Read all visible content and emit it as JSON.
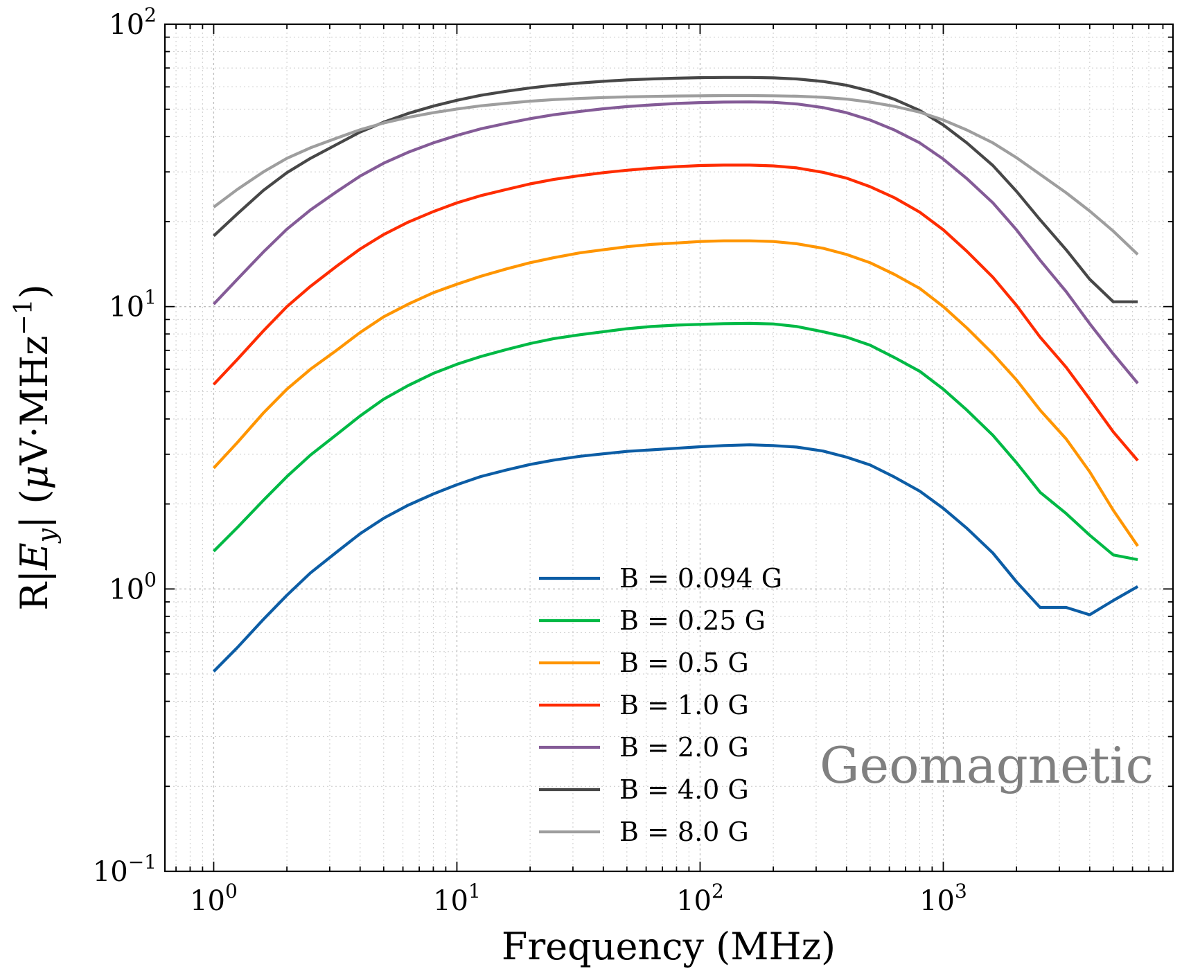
{
  "chart_data": {
    "type": "line",
    "x_scale": "log",
    "y_scale": "log",
    "xlabel": "Frequency (MHz)",
    "ylabel_parts": {
      "prefix": "R|",
      "var": "E",
      "sub": "y",
      "mid": "| (",
      "mu": "μ",
      "unit": "V·MHz",
      "exp": "−1",
      "suffix": ")"
    },
    "xlim": [
      0.63,
      8800
    ],
    "ylim": [
      0.1,
      100
    ],
    "x_ticks": [
      {
        "value": 1,
        "base": "10",
        "exp": "0"
      },
      {
        "value": 10,
        "base": "10",
        "exp": "1"
      },
      {
        "value": 100,
        "base": "10",
        "exp": "2"
      },
      {
        "value": 1000,
        "base": "10",
        "exp": "3"
      }
    ],
    "y_ticks": [
      {
        "value": 0.1,
        "base": "10",
        "exp": "−1"
      },
      {
        "value": 1,
        "base": "10",
        "exp": "0"
      },
      {
        "value": 10,
        "base": "10",
        "exp": "1"
      },
      {
        "value": 100,
        "base": "10",
        "exp": "2"
      }
    ],
    "grid": true,
    "legend_position": "lower-center",
    "annotation": "Geomagnetic",
    "x": [
      1,
      1.25,
      1.6,
      2,
      2.5,
      3.2,
      4,
      5,
      6.3,
      8,
      10,
      12.5,
      16,
      20,
      25,
      32,
      40,
      50,
      63,
      80,
      100,
      125,
      160,
      200,
      250,
      320,
      400,
      500,
      630,
      800,
      1000,
      1250,
      1600,
      2000,
      2500,
      3200,
      4000,
      5000,
      6300
    ],
    "series": [
      {
        "name": "B = 0.094 G",
        "color": "#0c5da5",
        "values": [
          0.51,
          0.62,
          0.78,
          0.95,
          1.14,
          1.35,
          1.57,
          1.78,
          1.98,
          2.17,
          2.34,
          2.5,
          2.64,
          2.76,
          2.86,
          2.95,
          3.01,
          3.07,
          3.11,
          3.15,
          3.19,
          3.22,
          3.24,
          3.22,
          3.18,
          3.08,
          2.93,
          2.75,
          2.49,
          2.22,
          1.93,
          1.64,
          1.34,
          1.06,
          0.86,
          0.86,
          0.81,
          0.91,
          1.02
        ]
      },
      {
        "name": "B = 0.25 G",
        "color": "#00b945",
        "values": [
          1.36,
          1.65,
          2.06,
          2.5,
          2.98,
          3.52,
          4.1,
          4.7,
          5.25,
          5.8,
          6.25,
          6.65,
          7.05,
          7.4,
          7.7,
          7.95,
          8.15,
          8.35,
          8.5,
          8.6,
          8.65,
          8.7,
          8.72,
          8.68,
          8.5,
          8.15,
          7.8,
          7.3,
          6.6,
          5.9,
          5.1,
          4.3,
          3.5,
          2.8,
          2.2,
          1.85,
          1.55,
          1.32,
          1.27
        ]
      },
      {
        "name": "B = 0.5 G",
        "color": "#ff9500",
        "values": [
          2.68,
          3.3,
          4.2,
          5.1,
          6.0,
          7.0,
          8.1,
          9.2,
          10.2,
          11.2,
          12.0,
          12.8,
          13.6,
          14.3,
          14.9,
          15.5,
          15.9,
          16.3,
          16.6,
          16.8,
          17.0,
          17.1,
          17.1,
          17.0,
          16.7,
          16.1,
          15.3,
          14.3,
          13.0,
          11.6,
          10.0,
          8.4,
          6.8,
          5.5,
          4.3,
          3.4,
          2.6,
          1.9,
          1.42
        ]
      },
      {
        "name": "B = 1.0 G",
        "color": "#ff2c00",
        "values": [
          5.3,
          6.5,
          8.2,
          10.0,
          11.8,
          13.9,
          16.0,
          18.0,
          19.9,
          21.7,
          23.3,
          24.7,
          26.0,
          27.2,
          28.2,
          29.1,
          29.8,
          30.4,
          30.9,
          31.3,
          31.6,
          31.7,
          31.7,
          31.5,
          31.0,
          29.9,
          28.5,
          26.6,
          24.3,
          21.6,
          18.7,
          15.7,
          12.7,
          10.1,
          7.8,
          6.1,
          4.7,
          3.6,
          2.85
        ]
      },
      {
        "name": "B = 2.0 G",
        "color": "#845b97",
        "values": [
          10.2,
          12.5,
          15.6,
          18.8,
          22.0,
          25.5,
          29.0,
          32.2,
          35.2,
          38.0,
          40.4,
          42.6,
          44.6,
          46.3,
          47.8,
          49.1,
          50.2,
          51.1,
          51.8,
          52.4,
          52.8,
          53.0,
          53.1,
          52.9,
          52.2,
          50.7,
          48.6,
          45.8,
          42.2,
          38.0,
          33.3,
          28.4,
          23.3,
          18.7,
          14.6,
          11.3,
          8.7,
          6.8,
          5.35
        ]
      },
      {
        "name": "B = 4.0 G",
        "color": "#474747",
        "values": [
          17.8,
          21.3,
          25.8,
          29.8,
          33.5,
          37.5,
          41.5,
          45.0,
          48.3,
          51.3,
          53.8,
          56.0,
          57.9,
          59.5,
          60.8,
          61.9,
          62.8,
          63.5,
          64.0,
          64.4,
          64.7,
          64.8,
          64.8,
          64.6,
          64.0,
          62.7,
          60.8,
          58.0,
          54.2,
          49.5,
          44.0,
          38.0,
          31.6,
          25.6,
          20.3,
          15.9,
          12.5,
          10.4,
          10.4
        ]
      },
      {
        "name": "B = 8.0 G",
        "color": "#9e9e9e",
        "values": [
          22.5,
          26.0,
          30.0,
          33.5,
          36.5,
          39.5,
          42.3,
          44.7,
          46.8,
          48.6,
          50.1,
          51.4,
          52.5,
          53.4,
          54.1,
          54.6,
          55.0,
          55.3,
          55.5,
          55.7,
          55.8,
          55.9,
          55.9,
          55.8,
          55.6,
          55.1,
          54.3,
          53.0,
          51.2,
          48.8,
          45.8,
          42.2,
          38.0,
          33.7,
          29.4,
          25.3,
          21.8,
          18.5,
          15.3
        ]
      }
    ]
  }
}
